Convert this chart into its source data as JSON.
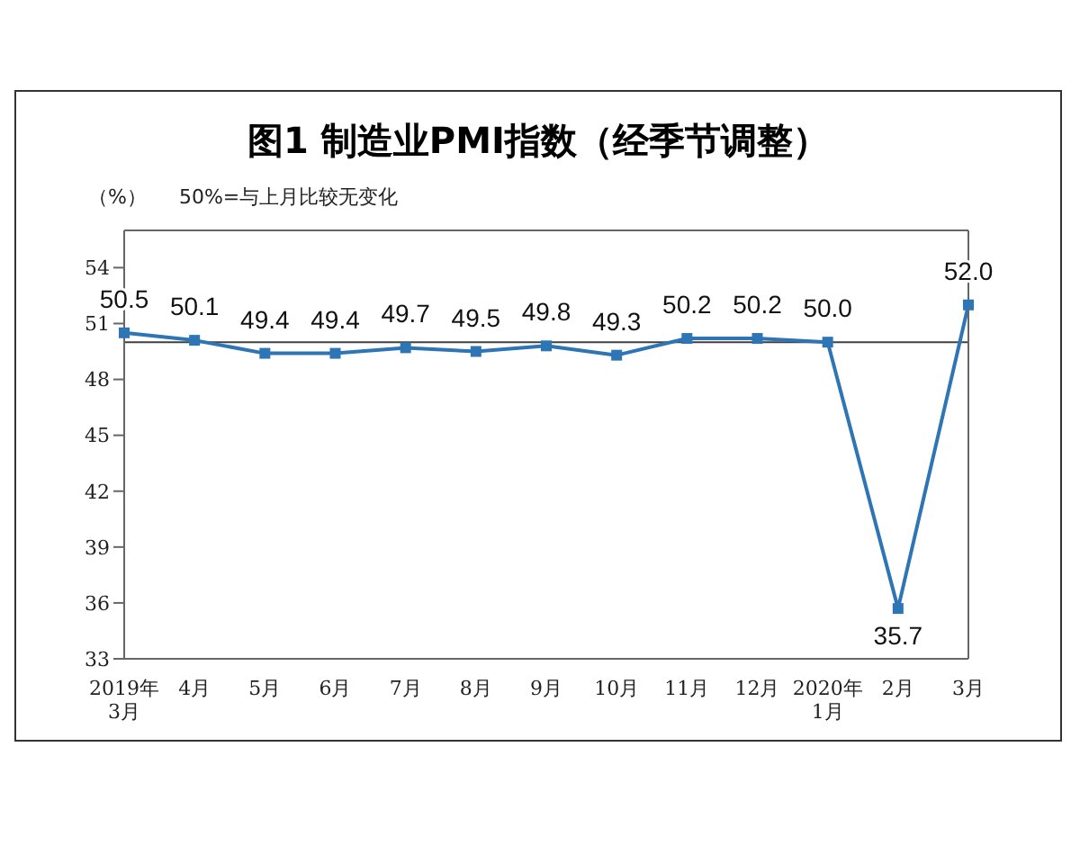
{
  "chart_data": {
    "type": "line",
    "title": "图1 制造业PMI指数（经季节调整）",
    "ylabel": "（%）",
    "annotations": [
      "50%=与上月比较无变化"
    ],
    "categories": [
      "2019年\n3月",
      "4月",
      "5月",
      "6月",
      "7月",
      "8月",
      "9月",
      "10月",
      "11月",
      "12月",
      "2020年\n1月",
      "2月",
      "3月"
    ],
    "series": [
      {
        "color": "#2e75b6",
        "values": [
          50.5,
          50.1,
          49.4,
          49.4,
          49.7,
          49.5,
          49.8,
          49.3,
          50.2,
          50.2,
          50.0,
          35.7,
          52.0
        ],
        "value_labels": [
          "50.5",
          "50.1",
          "49.4",
          "49.4",
          "49.7",
          "49.5",
          "49.8",
          "49.3",
          "50.2",
          "50.2",
          "50.0",
          "35.7",
          "52.0"
        ]
      }
    ],
    "ylim": [
      33,
      56
    ],
    "yticks": [
      33,
      36,
      39,
      42,
      45,
      48,
      51,
      54
    ],
    "ref_lines": [
      {
        "axis": "y",
        "value": 50,
        "color": "#404040"
      }
    ],
    "grid": false,
    "legend": false,
    "marker": "square",
    "line_style": "solid"
  }
}
